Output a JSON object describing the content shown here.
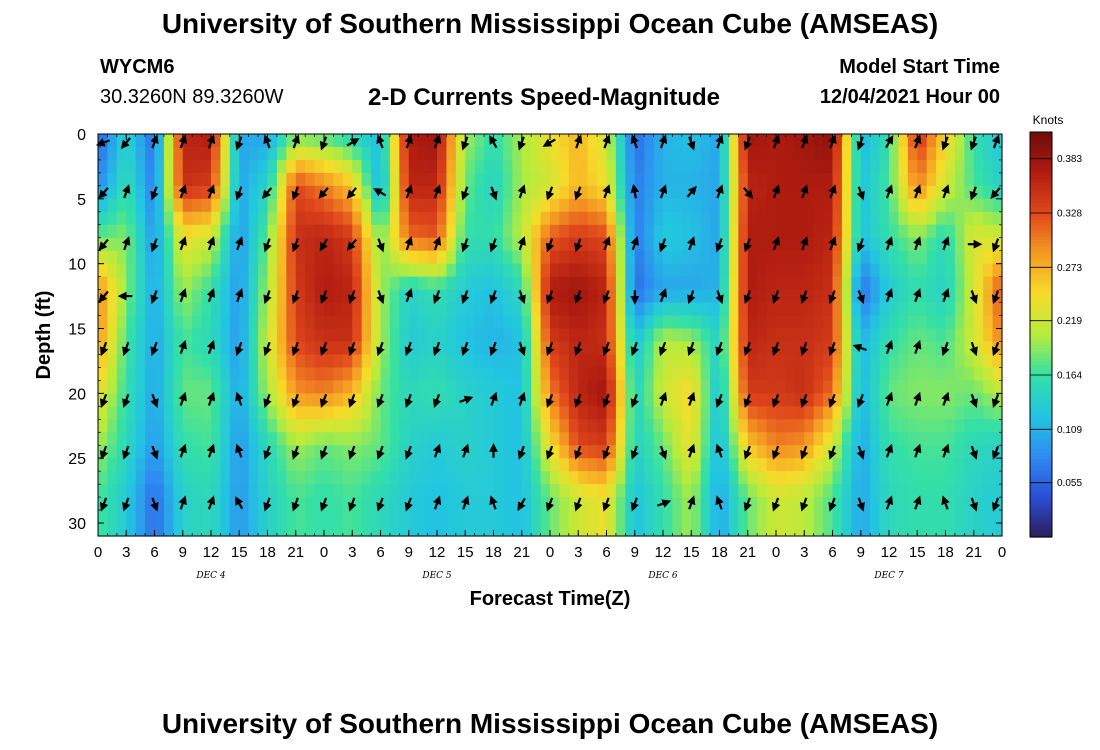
{
  "header": {
    "title": "University of Southern Mississippi Ocean Cube (AMSEAS)",
    "station": "WYCM6",
    "coordinates": "30.3260N  89.3260W",
    "subtitle": "2-D Currents Speed-Magnitude",
    "model_start_label": "Model Start Time",
    "model_start_value": "12/04/2021 Hour 00"
  },
  "footer": {
    "title": "University of Southern Mississippi Ocean Cube (AMSEAS)"
  },
  "chart_data": {
    "type": "heatmap",
    "title": "2-D Currents Speed-Magnitude",
    "xlabel": "Forecast Time(Z)",
    "ylabel": "Depth (ft)",
    "xlim": [
      0,
      96
    ],
    "ylim": [
      0,
      31
    ],
    "x_tick_values": [
      0,
      3,
      6,
      9,
      12,
      15,
      18,
      21,
      24,
      27,
      30,
      33,
      36,
      39,
      42,
      45,
      48,
      51,
      54,
      57,
      60,
      63,
      66,
      69,
      72,
      75,
      78,
      81,
      84,
      87,
      90,
      93,
      96
    ],
    "x_tick_labels": [
      "0",
      "3",
      "6",
      "9",
      "12",
      "15",
      "18",
      "21",
      "0",
      "3",
      "6",
      "9",
      "12",
      "15",
      "18",
      "21",
      "0",
      "3",
      "6",
      "9",
      "12",
      "15",
      "18",
      "21",
      "0",
      "3",
      "6",
      "9",
      "12",
      "15",
      "18",
      "21",
      "0"
    ],
    "y_ticks": [
      0,
      5,
      10,
      15,
      20,
      25,
      30
    ],
    "day_labels": [
      {
        "x": 12,
        "text": "DEC 4"
      },
      {
        "x": 36,
        "text": "DEC 5"
      },
      {
        "x": 60,
        "text": "DEC 6"
      },
      {
        "x": 84,
        "text": "DEC 7"
      }
    ],
    "colorbar": {
      "unit": "Knots",
      "min": 0.0,
      "max": 0.41,
      "ticks": [
        "0.383",
        "0.328",
        "0.273",
        "0.219",
        "0.164",
        "0.109",
        "0.055"
      ],
      "tick_values": [
        0.383,
        0.328,
        0.273,
        0.219,
        0.164,
        0.109,
        0.055
      ]
    },
    "colormap": [
      "#2c1e5c",
      "#2a4fd6",
      "#2f8cf2",
      "#22c6e0",
      "#35e0a5",
      "#b6ec3c",
      "#f6dc2a",
      "#f59a23",
      "#e0471c",
      "#b01c10",
      "#6e0c0a"
    ],
    "column_times": [
      0,
      3,
      6,
      9,
      12,
      15,
      18,
      21,
      24,
      27,
      30,
      33,
      36,
      39,
      42,
      45,
      48,
      51,
      54,
      57,
      60,
      63,
      66,
      69,
      72,
      75,
      78,
      81,
      84,
      87,
      90,
      93,
      96
    ],
    "row_depths": [
      0,
      4,
      8,
      12,
      16,
      20,
      24,
      28
    ],
    "speed_knots": [
      [
        0.05,
        0.14,
        0.06,
        0.36,
        0.37,
        0.1,
        0.1,
        0.18,
        0.17,
        0.14,
        0.12,
        0.37,
        0.38,
        0.2,
        0.16,
        0.2,
        0.24,
        0.27,
        0.22,
        0.06,
        0.11,
        0.12,
        0.1,
        0.38,
        0.37,
        0.38,
        0.39,
        0.11,
        0.16,
        0.35,
        0.25,
        0.16,
        0.12
      ],
      [
        0.08,
        0.16,
        0.07,
        0.35,
        0.34,
        0.1,
        0.14,
        0.33,
        0.3,
        0.26,
        0.1,
        0.36,
        0.36,
        0.18,
        0.14,
        0.2,
        0.22,
        0.27,
        0.24,
        0.07,
        0.11,
        0.11,
        0.1,
        0.36,
        0.37,
        0.37,
        0.37,
        0.12,
        0.17,
        0.3,
        0.22,
        0.17,
        0.14
      ],
      [
        0.18,
        0.19,
        0.09,
        0.24,
        0.22,
        0.09,
        0.18,
        0.35,
        0.36,
        0.34,
        0.18,
        0.31,
        0.32,
        0.16,
        0.16,
        0.21,
        0.32,
        0.34,
        0.33,
        0.07,
        0.13,
        0.12,
        0.1,
        0.37,
        0.37,
        0.37,
        0.36,
        0.12,
        0.16,
        0.19,
        0.15,
        0.23,
        0.22
      ],
      [
        0.3,
        0.19,
        0.1,
        0.2,
        0.16,
        0.09,
        0.2,
        0.34,
        0.37,
        0.36,
        0.2,
        0.14,
        0.16,
        0.13,
        0.12,
        0.15,
        0.37,
        0.38,
        0.36,
        0.06,
        0.1,
        0.1,
        0.11,
        0.37,
        0.36,
        0.36,
        0.35,
        0.06,
        0.13,
        0.16,
        0.14,
        0.22,
        0.33
      ],
      [
        0.29,
        0.17,
        0.1,
        0.17,
        0.15,
        0.09,
        0.22,
        0.33,
        0.35,
        0.35,
        0.2,
        0.13,
        0.14,
        0.12,
        0.11,
        0.12,
        0.34,
        0.36,
        0.35,
        0.12,
        0.21,
        0.2,
        0.14,
        0.36,
        0.35,
        0.35,
        0.34,
        0.11,
        0.16,
        0.18,
        0.17,
        0.22,
        0.3
      ],
      [
        0.24,
        0.16,
        0.1,
        0.18,
        0.18,
        0.1,
        0.2,
        0.29,
        0.3,
        0.27,
        0.18,
        0.15,
        0.16,
        0.14,
        0.13,
        0.12,
        0.3,
        0.36,
        0.38,
        0.14,
        0.22,
        0.25,
        0.12,
        0.34,
        0.34,
        0.35,
        0.31,
        0.11,
        0.18,
        0.19,
        0.19,
        0.18,
        0.21
      ],
      [
        0.2,
        0.15,
        0.09,
        0.16,
        0.17,
        0.09,
        0.15,
        0.2,
        0.18,
        0.19,
        0.18,
        0.14,
        0.13,
        0.14,
        0.13,
        0.12,
        0.24,
        0.33,
        0.34,
        0.14,
        0.18,
        0.24,
        0.11,
        0.26,
        0.3,
        0.29,
        0.22,
        0.1,
        0.16,
        0.17,
        0.17,
        0.15,
        0.14
      ],
      [
        0.17,
        0.13,
        0.06,
        0.14,
        0.15,
        0.09,
        0.14,
        0.17,
        0.16,
        0.17,
        0.15,
        0.13,
        0.12,
        0.13,
        0.13,
        0.12,
        0.18,
        0.22,
        0.24,
        0.12,
        0.16,
        0.2,
        0.1,
        0.18,
        0.22,
        0.21,
        0.17,
        0.1,
        0.15,
        0.16,
        0.16,
        0.14,
        0.13
      ]
    ],
    "arrow_directions_deg": [
      [
        250,
        220,
        20,
        20,
        20,
        200,
        340,
        20,
        200,
        60,
        340,
        20,
        20,
        200,
        330,
        200,
        240,
        20,
        20,
        340,
        20,
        160,
        20,
        200,
        20,
        20,
        20,
        200,
        30,
        20,
        200,
        200,
        20
      ],
      [
        220,
        20,
        200,
        20,
        20,
        200,
        220,
        200,
        220,
        220,
        300,
        20,
        20,
        200,
        160,
        20,
        200,
        200,
        20,
        350,
        20,
        40,
        20,
        140,
        20,
        20,
        20,
        160,
        20,
        20,
        20,
        200,
        220
      ],
      [
        220,
        20,
        200,
        20,
        20,
        20,
        200,
        200,
        210,
        220,
        160,
        20,
        20,
        200,
        200,
        20,
        200,
        200,
        20,
        20,
        200,
        20,
        200,
        200,
        20,
        20,
        20,
        200,
        20,
        20,
        20,
        90,
        200
      ],
      [
        220,
        270,
        200,
        20,
        20,
        20,
        200,
        200,
        200,
        200,
        160,
        20,
        200,
        200,
        200,
        160,
        200,
        200,
        200,
        180,
        20,
        200,
        160,
        200,
        200,
        200,
        200,
        160,
        20,
        20,
        20,
        160,
        200
      ],
      [
        200,
        200,
        200,
        20,
        20,
        200,
        200,
        200,
        200,
        200,
        200,
        200,
        200,
        200,
        200,
        160,
        200,
        200,
        200,
        200,
        200,
        200,
        200,
        200,
        200,
        200,
        200,
        290,
        20,
        20,
        200,
        160,
        200
      ],
      [
        200,
        200,
        160,
        20,
        20,
        340,
        200,
        200,
        200,
        200,
        200,
        200,
        200,
        70,
        20,
        20,
        200,
        200,
        200,
        200,
        20,
        20,
        200,
        200,
        200,
        200,
        200,
        200,
        20,
        20,
        20,
        160,
        200
      ],
      [
        200,
        200,
        160,
        20,
        20,
        340,
        200,
        200,
        200,
        200,
        200,
        200,
        20,
        20,
        0,
        200,
        200,
        200,
        200,
        200,
        160,
        20,
        340,
        200,
        200,
        200,
        200,
        160,
        20,
        20,
        20,
        160,
        200
      ],
      [
        200,
        200,
        160,
        20,
        20,
        330,
        200,
        200,
        200,
        200,
        200,
        200,
        20,
        20,
        340,
        210,
        200,
        200,
        200,
        200,
        70,
        20,
        340,
        200,
        200,
        200,
        200,
        160,
        20,
        20,
        340,
        160,
        200
      ]
    ]
  }
}
